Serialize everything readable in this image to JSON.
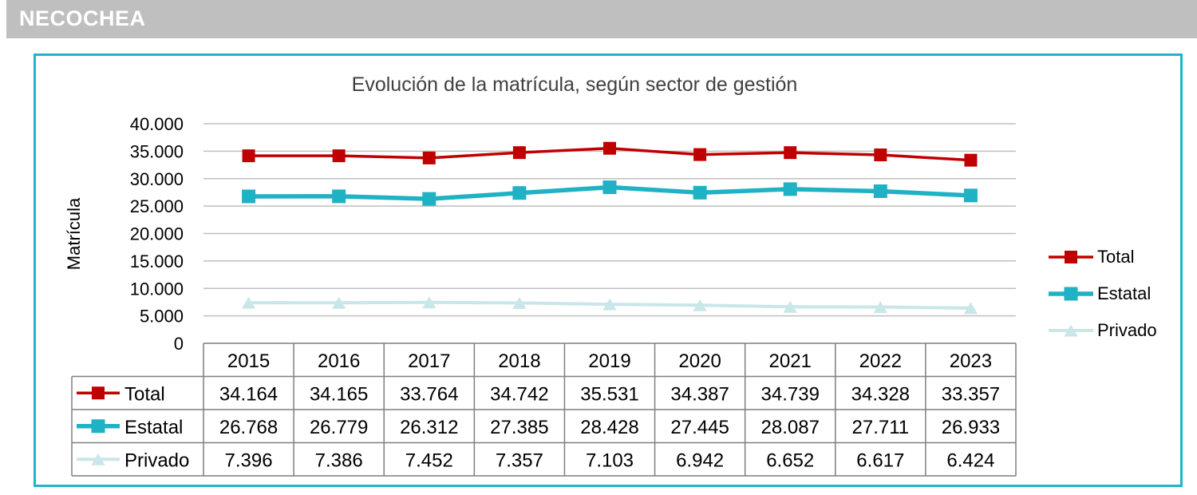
{
  "header": {
    "title": "NECOCHEA"
  },
  "colors": {
    "banner": "#bfbfbf",
    "frame": "#1fb5c9",
    "total": "#c00000",
    "estatal": "#1fb1c4",
    "privado": "#c9e6e9",
    "grid": "#bfbfbf"
  },
  "chart_data": {
    "type": "line",
    "title": "Evolución de la matrícula, según sector de gestión",
    "xlabel": "",
    "ylabel": "Matrícula",
    "categories": [
      "2015",
      "2016",
      "2017",
      "2018",
      "2019",
      "2020",
      "2021",
      "2022",
      "2023"
    ],
    "ylim": [
      0,
      40000
    ],
    "yticks": [
      "0",
      "5.000",
      "10.000",
      "15.000",
      "20.000",
      "25.000",
      "30.000",
      "35.000",
      "40.000"
    ],
    "grid": true,
    "legend_position": "right",
    "data_table": true,
    "series": [
      {
        "name": "Total",
        "marker": "square",
        "color": "#c00000",
        "values": [
          34164,
          34165,
          33764,
          34742,
          35531,
          34387,
          34739,
          34328,
          33357
        ],
        "labels": [
          "34.164",
          "34.165",
          "33.764",
          "34.742",
          "35.531",
          "34.387",
          "34.739",
          "34.328",
          "33.357"
        ]
      },
      {
        "name": "Estatal",
        "marker": "square",
        "color": "#1fb1c4",
        "values": [
          26768,
          26779,
          26312,
          27385,
          28428,
          27445,
          28087,
          27711,
          26933
        ],
        "labels": [
          "26.768",
          "26.779",
          "26.312",
          "27.385",
          "28.428",
          "27.445",
          "28.087",
          "27.711",
          "26.933"
        ]
      },
      {
        "name": "Privado",
        "marker": "triangle",
        "color": "#c9e6e9",
        "values": [
          7396,
          7386,
          7452,
          7357,
          7103,
          6942,
          6652,
          6617,
          6424
        ],
        "labels": [
          "7.396",
          "7.386",
          "7.452",
          "7.357",
          "7.103",
          "6.942",
          "6.652",
          "6.617",
          "6.424"
        ]
      }
    ]
  }
}
